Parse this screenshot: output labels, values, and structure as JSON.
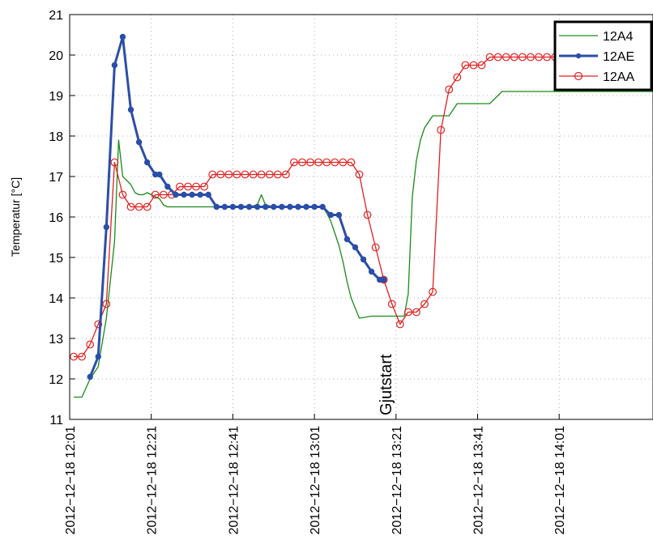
{
  "chart_data": {
    "type": "line",
    "title": "",
    "xlabel": "",
    "ylabel": "Temperatur [°C]",
    "ylim": [
      11,
      21
    ],
    "xlim_minutes_after_12_01": [
      0,
      143
    ],
    "yticks": [
      11,
      12,
      13,
      14,
      15,
      16,
      17,
      18,
      19,
      20,
      21
    ],
    "xticks": [
      {
        "minute": 0,
        "label": "2012−12−18 12:01"
      },
      {
        "minute": 20,
        "label": "2012−12−18 12:21"
      },
      {
        "minute": 40,
        "label": "2012−12−18 12:41"
      },
      {
        "minute": 60,
        "label": "2012−12−18 13:01"
      },
      {
        "minute": 80,
        "label": "2012−12−18 13:21"
      },
      {
        "minute": 100,
        "label": "2012−12−18 13:41"
      },
      {
        "minute": 120,
        "label": "2012−12−18 14:01"
      }
    ],
    "grid": true,
    "legend_position": "top-right",
    "annotations": [
      {
        "text": "Gjutstart",
        "minute": 80,
        "y": 11.1,
        "rotation": -90
      }
    ],
    "series": [
      {
        "name": "12A4",
        "color": "#1a8a1a",
        "marker": "none",
        "x": [
          1,
          3,
          5,
          7,
          9,
          11,
          12,
          13,
          14,
          15,
          16,
          17,
          18,
          19,
          21,
          22,
          23,
          24,
          27,
          30,
          33,
          35,
          38,
          40,
          42,
          44,
          46,
          47,
          48,
          50,
          53,
          55,
          58,
          61,
          62,
          63,
          64,
          65,
          66,
          67,
          68,
          69,
          71,
          74,
          76,
          77,
          78,
          79,
          80,
          81,
          82,
          83,
          84,
          85,
          86,
          87,
          89,
          91,
          93,
          95,
          98,
          100,
          103,
          106,
          108,
          110,
          112,
          113,
          114,
          116,
          118,
          120,
          122,
          124,
          126,
          128,
          130,
          134,
          138,
          143
        ],
        "y": [
          11.55,
          11.55,
          12.0,
          12.3,
          13.5,
          15.4,
          17.9,
          17.0,
          16.9,
          16.8,
          16.6,
          16.55,
          16.55,
          16.6,
          16.5,
          16.45,
          16.3,
          16.25,
          16.25,
          16.25,
          16.25,
          16.25,
          16.25,
          16.25,
          16.25,
          16.25,
          16.3,
          16.55,
          16.3,
          16.25,
          16.25,
          16.25,
          16.25,
          16.25,
          16.25,
          16.1,
          15.9,
          15.6,
          15.3,
          14.9,
          14.4,
          14.0,
          13.5,
          13.55,
          13.55,
          13.55,
          13.55,
          13.55,
          13.55,
          13.55,
          13.55,
          14.1,
          16.5,
          17.4,
          17.9,
          18.2,
          18.5,
          18.5,
          18.5,
          18.8,
          18.8,
          18.8,
          18.8,
          19.1,
          19.1,
          19.1,
          19.1,
          19.1,
          19.1,
          19.1,
          19.1,
          19.1,
          19.1,
          19.1,
          19.1,
          19.1,
          19.1,
          19.1,
          19.1,
          19.1
        ]
      },
      {
        "name": "12AE",
        "color": "#2b4ea8",
        "marker": "filled-circle",
        "x": [
          5,
          7,
          9,
          11,
          13,
          15,
          17,
          19,
          21,
          22,
          24,
          26,
          28,
          30,
          32,
          34,
          36,
          38,
          40,
          42,
          44,
          46,
          48,
          50,
          52,
          54,
          56,
          58,
          60,
          62,
          64,
          66,
          68,
          70,
          72,
          74,
          76,
          77
        ],
        "y": [
          12.05,
          12.55,
          15.75,
          19.75,
          20.45,
          18.65,
          17.85,
          17.35,
          17.05,
          17.05,
          16.75,
          16.55,
          16.55,
          16.55,
          16.55,
          16.55,
          16.25,
          16.25,
          16.25,
          16.25,
          16.25,
          16.25,
          16.25,
          16.25,
          16.25,
          16.25,
          16.25,
          16.25,
          16.25,
          16.25,
          16.05,
          16.05,
          15.45,
          15.25,
          14.95,
          14.65,
          14.45,
          14.45
        ]
      },
      {
        "name": "12AA",
        "color": "#e02020",
        "marker": "open-circle",
        "x": [
          1,
          3,
          5,
          7,
          9,
          11,
          13,
          15,
          17,
          19,
          21,
          23,
          25,
          27,
          29,
          31,
          33,
          35,
          37,
          39,
          41,
          43,
          45,
          47,
          49,
          51,
          53,
          55,
          57,
          59,
          61,
          63,
          65,
          67,
          69,
          71,
          73,
          75,
          77,
          79,
          81,
          83,
          85,
          87,
          89,
          91,
          93,
          95,
          97,
          99,
          101,
          103,
          105,
          107,
          109,
          111,
          113,
          115,
          117,
          119,
          121
        ],
        "y": [
          12.55,
          12.55,
          12.85,
          13.35,
          13.85,
          17.35,
          16.55,
          16.25,
          16.25,
          16.25,
          16.55,
          16.55,
          16.55,
          16.75,
          16.75,
          16.75,
          16.75,
          17.05,
          17.05,
          17.05,
          17.05,
          17.05,
          17.05,
          17.05,
          17.05,
          17.05,
          17.05,
          17.35,
          17.35,
          17.35,
          17.35,
          17.35,
          17.35,
          17.35,
          17.35,
          17.05,
          16.05,
          15.25,
          14.45,
          13.85,
          13.35,
          13.65,
          13.65,
          13.85,
          14.15,
          18.15,
          19.15,
          19.45,
          19.75,
          19.75,
          19.75,
          19.95,
          19.95,
          19.95,
          19.95,
          19.95,
          19.95,
          19.95,
          19.95,
          19.95,
          19.95
        ]
      }
    ]
  }
}
